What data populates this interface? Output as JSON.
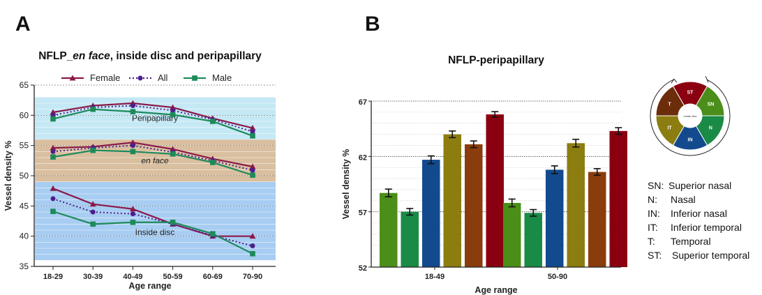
{
  "panels": {
    "a": {
      "letter": "A"
    },
    "b": {
      "letter": "B"
    }
  },
  "chart_data": [
    {
      "type": "line",
      "title": "NFLP_en face, inside disc and peripapillary",
      "title_parts": {
        "prefix": "NFLP_",
        "italic": "en face",
        "suffix": ", inside disc and peripapillary"
      },
      "xlabel": "Age range",
      "ylabel": "Vessel density %",
      "categories": [
        "18-29",
        "30-39",
        "40-49",
        "50-59",
        "60-69",
        "70-90"
      ],
      "ylim": [
        35,
        65
      ],
      "yticks": [
        35,
        40,
        45,
        50,
        55,
        60,
        65
      ],
      "legend": {
        "position": "top",
        "entries": [
          "Female",
          "All",
          "Male"
        ]
      },
      "regions": [
        {
          "label": "Peripapillary",
          "range": [
            56,
            63
          ],
          "color": "#c5e8f5"
        },
        {
          "label": "en face",
          "range": [
            49,
            56
          ],
          "color": "#d9bf9f",
          "italic": true
        },
        {
          "label": "Inside disc",
          "range": [
            36,
            49
          ],
          "color": "#a8cdf2"
        }
      ],
      "series": [
        {
          "name": "Female",
          "color": "#8b1a4a",
          "marker": "triangle",
          "dash": false,
          "group": "peripapillary",
          "values": [
            60.5,
            61.6,
            62.0,
            61.3,
            59.5,
            57.9
          ]
        },
        {
          "name": "All",
          "color": "#4b1f8c",
          "marker": "circle",
          "dash": true,
          "group": "peripapillary",
          "values": [
            60.0,
            61.3,
            61.6,
            60.8,
            59.3,
            57.3
          ]
        },
        {
          "name": "Male",
          "color": "#1e8a5a",
          "marker": "square",
          "dash": false,
          "group": "peripapillary",
          "values": [
            59.4,
            61.0,
            60.6,
            60.1,
            59.0,
            56.6
          ]
        },
        {
          "name": "Female",
          "color": "#8b1a4a",
          "marker": "triangle",
          "dash": false,
          "group": "en face",
          "values": [
            54.6,
            54.8,
            55.5,
            54.4,
            52.8,
            51.5
          ]
        },
        {
          "name": "All",
          "color": "#4b1f8c",
          "marker": "circle",
          "dash": true,
          "group": "en face",
          "values": [
            54.0,
            54.6,
            55.0,
            53.9,
            52.5,
            50.9
          ]
        },
        {
          "name": "Male",
          "color": "#1e8a5a",
          "marker": "square",
          "dash": false,
          "group": "en face",
          "values": [
            53.1,
            54.2,
            54.0,
            53.6,
            52.2,
            50.1
          ]
        },
        {
          "name": "Female",
          "color": "#8b1a4a",
          "marker": "triangle",
          "dash": false,
          "group": "inside disc",
          "values": [
            47.9,
            45.3,
            44.5,
            42.0,
            40.0,
            40.0
          ]
        },
        {
          "name": "All",
          "color": "#4b1f8c",
          "marker": "circle",
          "dash": true,
          "group": "inside disc",
          "values": [
            46.2,
            44.0,
            43.7,
            42.0,
            40.1,
            38.4
          ]
        },
        {
          "name": "Male",
          "color": "#1e8a5a",
          "marker": "square",
          "dash": false,
          "group": "inside disc",
          "values": [
            44.1,
            42.0,
            42.3,
            42.3,
            40.4,
            37.1
          ]
        }
      ]
    },
    {
      "type": "bar",
      "title": "NFLP-peripapillary",
      "xlabel": "Age range",
      "ylabel": "Vessel density %",
      "categories": [
        "18-49",
        "50-90"
      ],
      "ylim": [
        52,
        67
      ],
      "yticks": [
        52,
        57,
        62,
        67
      ],
      "grid": "horizontal dotted",
      "series": [
        {
          "name": "SN",
          "color": "#4b8e1a",
          "values": [
            58.7,
            57.8
          ],
          "errors": [
            0.35,
            0.35
          ]
        },
        {
          "name": "N",
          "color": "#1a8a47",
          "values": [
            57.0,
            56.9
          ],
          "errors": [
            0.3,
            0.3
          ]
        },
        {
          "name": "IN",
          "color": "#134a8e",
          "values": [
            61.7,
            60.8
          ],
          "errors": [
            0.35,
            0.35
          ]
        },
        {
          "name": "IT",
          "color": "#8c7d10",
          "values": [
            64.0,
            63.2
          ],
          "errors": [
            0.3,
            0.35
          ]
        },
        {
          "name": "T",
          "color": "#8a3d0c",
          "values": [
            63.1,
            60.6
          ],
          "errors": [
            0.3,
            0.3
          ]
        },
        {
          "name": "ST",
          "color": "#8a0010",
          "values": [
            65.8,
            64.3
          ],
          "errors": [
            0.25,
            0.3
          ]
        }
      ],
      "sector_diagram": {
        "center_label": "Inside disc",
        "sectors": [
          {
            "label": "ST",
            "color": "#8a0010"
          },
          {
            "label": "SN",
            "color": "#4b8e1a"
          },
          {
            "label": "N",
            "color": "#1a8a47"
          },
          {
            "label": "IN",
            "color": "#134a8e"
          },
          {
            "label": "IT",
            "color": "#8c7d10"
          },
          {
            "label": "T",
            "color": "#6b2d0a"
          }
        ]
      },
      "abbreviations": [
        {
          "abbr": "SN:",
          "full": "Superior nasal"
        },
        {
          "abbr": "N:",
          "full": "Nasal"
        },
        {
          "abbr": "IN:",
          "full": "Inferior nasal"
        },
        {
          "abbr": "IT:",
          "full": "Inferior temporal"
        },
        {
          "abbr": "T:",
          "full": "Temporal"
        },
        {
          "abbr": "ST:",
          "full": "Superior temporal"
        }
      ]
    }
  ]
}
